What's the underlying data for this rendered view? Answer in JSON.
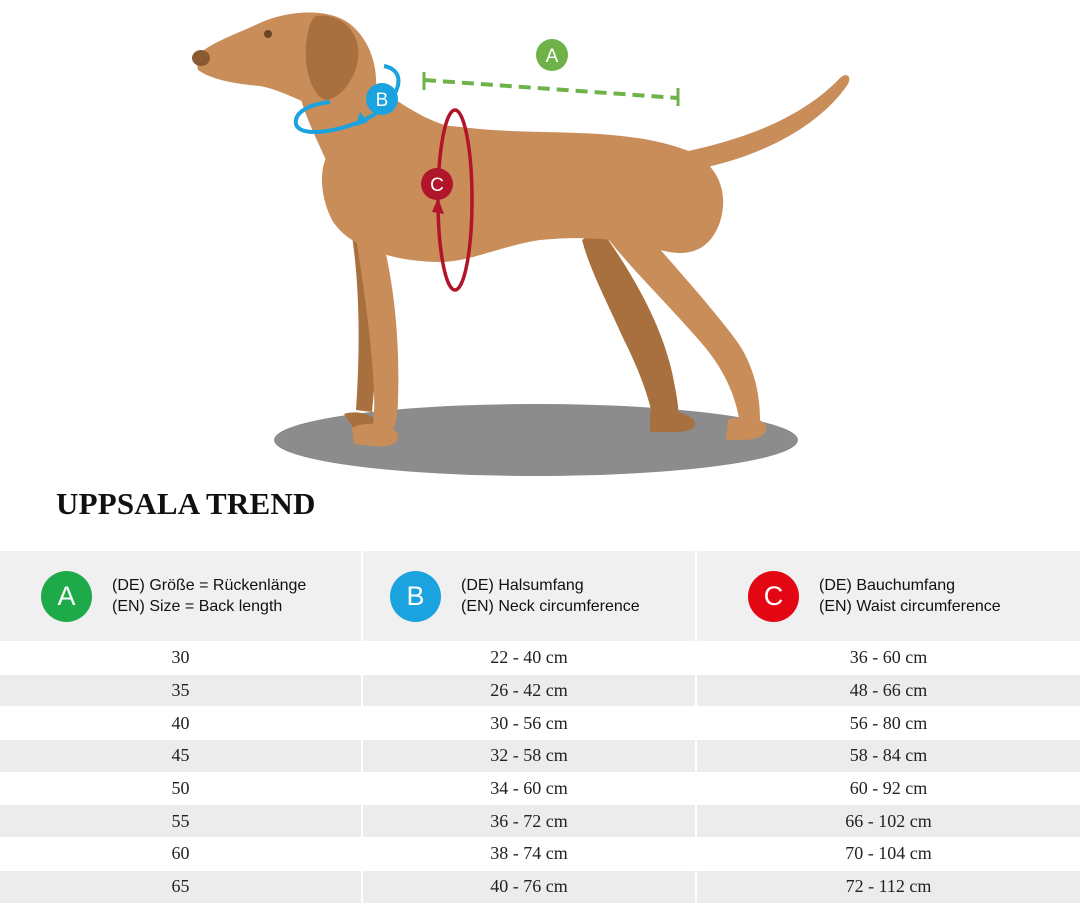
{
  "title": "UPPSALA TREND",
  "colors": {
    "A": "#1faa4a",
    "B": "#1aa3de",
    "C": "#e30613",
    "dog": "#c98d5a",
    "shadow": "#8c8c8c"
  },
  "diagram": {
    "markers": [
      "A",
      "B",
      "C"
    ]
  },
  "headers": [
    {
      "badge": "A",
      "de": "(DE) Größe = Rückenlänge",
      "en": "(EN) Size = Back length"
    },
    {
      "badge": "B",
      "de": "(DE) Halsumfang",
      "en": "(EN) Neck circumference"
    },
    {
      "badge": "C",
      "de": "(DE) Bauchumfang",
      "en": "(EN) Waist circumference"
    }
  ],
  "rows": [
    [
      "30",
      "22 - 40 cm",
      "36 - 60 cm"
    ],
    [
      "35",
      "26 - 42 cm",
      "48 - 66 cm"
    ],
    [
      "40",
      "30 - 56 cm",
      "56 - 80 cm"
    ],
    [
      "45",
      "32 - 58 cm",
      "58 - 84 cm"
    ],
    [
      "50",
      "34 - 60 cm",
      "60 - 92 cm"
    ],
    [
      "55",
      "36 - 72 cm",
      "66 - 102 cm"
    ],
    [
      "60",
      "38 - 74 cm",
      "70 - 104 cm"
    ],
    [
      "65",
      "40 - 76 cm",
      "72 - 112 cm"
    ]
  ]
}
